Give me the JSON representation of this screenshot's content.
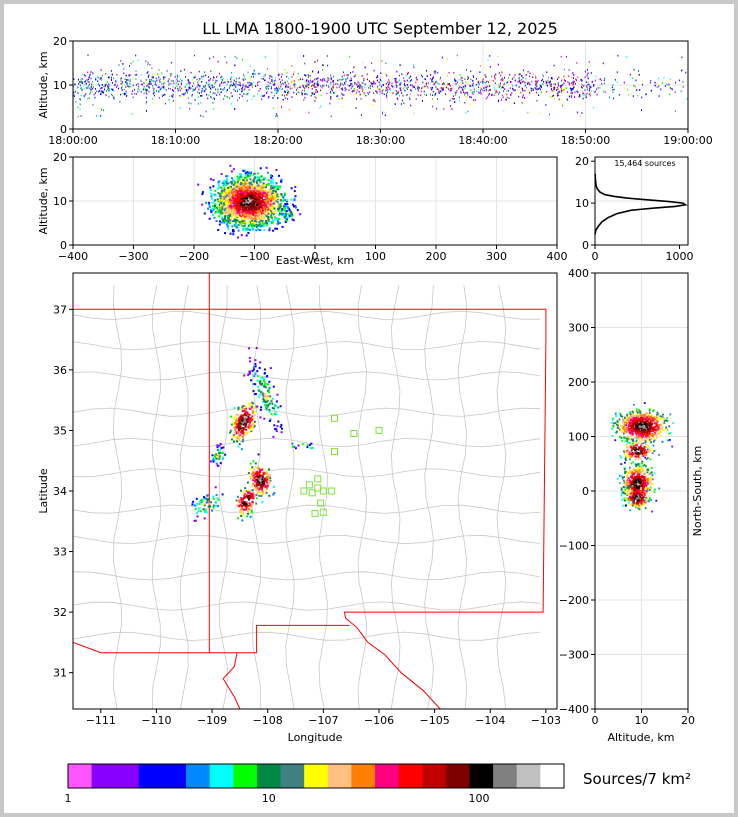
{
  "title": "LL LMA 1800-1900 UTC September 12, 2025",
  "colors": {
    "frame_bg": "#c8c8c8",
    "state_border": "#ff0000",
    "county_border": "#c8c8c8",
    "station": "#7fe03c"
  },
  "chart_data": [
    {
      "id": "time-altitude",
      "type": "scatter",
      "ylabel": "Altitude, km",
      "xlabel": "",
      "xticks": [
        "18:00:00",
        "18:10:00",
        "18:20:00",
        "18:30:00",
        "18:40:00",
        "18:50:00",
        "19:00:00"
      ],
      "xlim_minutes": [
        0,
        60
      ],
      "ylim": [
        0,
        20
      ],
      "yticks": [
        "0",
        "10",
        "20"
      ],
      "active_until_minutes": 51,
      "main_band_km": [
        7,
        12
      ],
      "grid": true
    },
    {
      "id": "east-west-altitude",
      "type": "heatmap",
      "xlabel": "East-West, km",
      "ylabel": "Altitude, km",
      "xlim": [
        -400,
        400
      ],
      "ylim": [
        0,
        20
      ],
      "xticks": [
        "−400",
        "−300",
        "−200",
        "−100",
        "0",
        "100",
        "200",
        "300",
        "400"
      ],
      "yticks": [
        "0",
        "10",
        "20"
      ],
      "core_center": [
        -110,
        10
      ],
      "grid": true
    },
    {
      "id": "altitude-histogram",
      "type": "line",
      "annotation": "15,464 sources",
      "xlim": [
        0,
        1100
      ],
      "ylim": [
        0,
        21
      ],
      "xticks": [
        "0",
        "1000"
      ],
      "yticks": [
        "0",
        "10",
        "20"
      ],
      "points": [
        [
          0,
          2.5
        ],
        [
          10,
          3.5
        ],
        [
          40,
          4.5
        ],
        [
          80,
          5.5
        ],
        [
          150,
          6.5
        ],
        [
          260,
          7.5
        ],
        [
          430,
          8.3
        ],
        [
          700,
          8.8
        ],
        [
          950,
          9.2
        ],
        [
          1070,
          9.6
        ],
        [
          1040,
          10.0
        ],
        [
          860,
          10.4
        ],
        [
          600,
          10.8
        ],
        [
          380,
          11.2
        ],
        [
          230,
          11.6
        ],
        [
          120,
          12.0
        ],
        [
          60,
          12.6
        ],
        [
          30,
          13.3
        ],
        [
          15,
          14.0
        ],
        [
          8,
          15.0
        ],
        [
          4,
          16.0
        ],
        [
          2,
          17.0
        ]
      ]
    },
    {
      "id": "plan-view",
      "type": "heatmap",
      "xlabel": "Longitude",
      "ylabel": "Latitude",
      "xlim": [
        -111.5,
        -102.8
      ],
      "ylim": [
        30.4,
        37.6
      ],
      "xticks": [
        "−111",
        "−110",
        "−109",
        "−108",
        "−107",
        "−106",
        "−105",
        "−104",
        "−103"
      ],
      "yticks": [
        "31",
        "32",
        "33",
        "34",
        "35",
        "36",
        "37"
      ],
      "source_clusters": [
        {
          "lon": -108.45,
          "lat": 35.15
        },
        {
          "lon": -108.15,
          "lat": 34.2
        },
        {
          "lon": -108.4,
          "lat": 33.85
        }
      ],
      "stations": [
        [
          -106.8,
          35.2
        ],
        [
          -106.45,
          34.95
        ],
        [
          -106.0,
          35.0
        ],
        [
          -106.8,
          34.65
        ],
        [
          -107.25,
          34.1
        ],
        [
          -107.1,
          34.2
        ],
        [
          -107.1,
          34.05
        ],
        [
          -107.0,
          34.0
        ],
        [
          -106.85,
          34.0
        ],
        [
          -107.2,
          33.97
        ],
        [
          -107.35,
          34.0
        ],
        [
          -107.05,
          33.8
        ],
        [
          -107.0,
          33.65
        ],
        [
          -107.15,
          33.63
        ]
      ]
    },
    {
      "id": "altitude-north-south",
      "type": "heatmap",
      "xlabel": "Altitude, km",
      "ylabel": "North-South, km",
      "xlim": [
        0,
        20
      ],
      "ylim": [
        -400,
        400
      ],
      "xticks": [
        "0",
        "10",
        "20"
      ],
      "yticks": [
        "−400",
        "−300",
        "−200",
        "−100",
        "0",
        "100",
        "200",
        "300",
        "400"
      ],
      "clusters_ns_km": [
        120,
        70,
        20,
        0
      ],
      "grid": true
    }
  ],
  "colorbar": {
    "label": "Sources/7 km²",
    "ticks": [
      "1",
      "10",
      "100"
    ],
    "colors": [
      "#ff55ff",
      "#8800ff",
      "#8800ff",
      "#0000ff",
      "#0000ff",
      "#0088ff",
      "#00ffff",
      "#00ff00",
      "#008844",
      "#408080",
      "#ffff00",
      "#ffc080",
      "#ff8000",
      "#ff0080",
      "#ff0000",
      "#c00000",
      "#800000",
      "#000000",
      "#808080",
      "#c0c0c0",
      "#ffffff"
    ]
  }
}
